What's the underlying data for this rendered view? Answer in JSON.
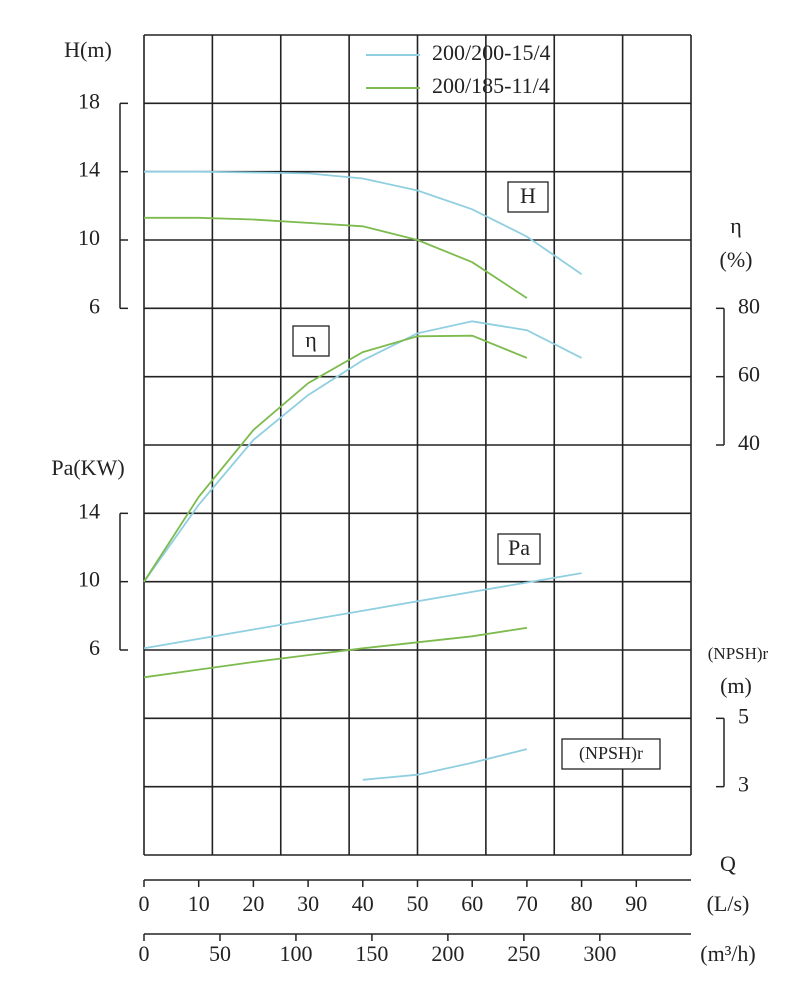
{
  "chart_data": {
    "type": "line",
    "x_name": "Q",
    "xlabel": "(L/s)",
    "xlim": [
      0,
      100
    ],
    "xticks": [
      0,
      10,
      20,
      30,
      40,
      50,
      60,
      70,
      80,
      90
    ],
    "x2label": "(m³/h)",
    "x2lim": [
      0,
      360
    ],
    "x2ticks": [
      0,
      50,
      100,
      150,
      200,
      250,
      300
    ],
    "grid": true,
    "axes": {
      "H": {
        "label": [
          "H(m)"
        ],
        "tag": "H",
        "ylim": [
          -26,
          22
        ],
        "yticks": [
          6,
          10,
          14,
          18
        ]
      },
      "eta": {
        "label": [
          "η",
          "(%)"
        ],
        "tag": "η",
        "ylim": [
          -80,
          160
        ],
        "yticks": [
          40,
          60,
          80
        ]
      },
      "Pa": {
        "label": [
          "Pa(KW)"
        ],
        "tag": "Pa",
        "ylim": [
          -6,
          42
        ],
        "yticks": [
          6,
          10,
          14
        ]
      },
      "NPSH": {
        "label": [
          "(NPSH)r",
          "(m)"
        ],
        "tag": "(NPSH)r",
        "ylim": [
          1,
          25
        ],
        "yticks": [
          3,
          5
        ]
      }
    },
    "series": [
      {
        "name": "200/200-15/4",
        "color": "#8fcfe0",
        "x": [
          0,
          10,
          20,
          30,
          40,
          50,
          60,
          70,
          80
        ],
        "H": [
          14,
          14,
          13.95,
          13.9,
          13.6,
          12.9,
          11.8,
          10.2,
          8.0
        ],
        "eta": [
          0,
          22.5,
          41.5,
          54.6,
          64.8,
          72.7,
          76.2,
          73.6,
          65.5
        ],
        "Pa": [
          6.1,
          6.65,
          7.2,
          7.75,
          8.3,
          8.85,
          9.4,
          9.95,
          10.5
        ],
        "NPSH": [
          null,
          null,
          null,
          null,
          3.2,
          3.35,
          3.7,
          4.1,
          null
        ]
      },
      {
        "name": "200/185-11/4",
        "color": "#7dbb4e",
        "x": [
          0,
          10,
          20,
          30,
          40,
          50,
          60,
          70,
          80
        ],
        "H": [
          11.3,
          11.3,
          11.2,
          11.0,
          10.8,
          10.0,
          8.7,
          6.6,
          null
        ],
        "eta": [
          0,
          24.8,
          44.4,
          58.1,
          67.2,
          71.8,
          72,
          65.5,
          null
        ],
        "Pa": [
          4.4,
          4.85,
          5.3,
          5.7,
          6.1,
          6.45,
          6.8,
          7.3,
          null
        ],
        "NPSH": [
          null,
          null,
          null,
          null,
          null,
          null,
          null,
          null,
          null
        ]
      }
    ]
  }
}
